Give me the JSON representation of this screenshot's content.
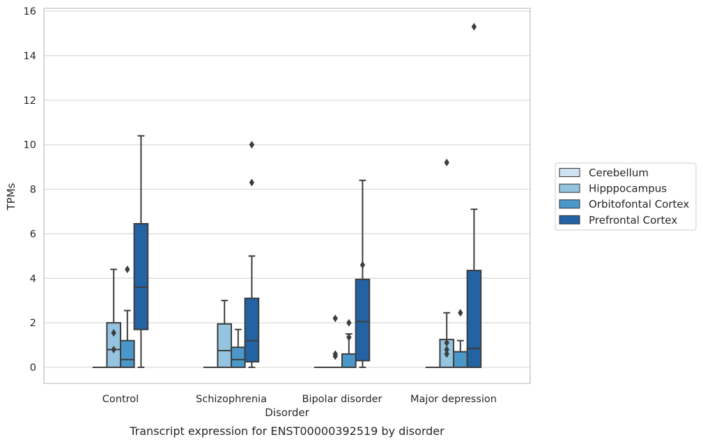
{
  "chart_data": {
    "type": "box",
    "xlabel": "Disorder",
    "ylabel": "TPMs",
    "caption": "Transcript expression for ENST00000392519 by disorder",
    "ylim": [
      -0.7,
      16.1
    ],
    "yticks": [
      0,
      2,
      4,
      6,
      8,
      10,
      12,
      14,
      16
    ],
    "grid": true,
    "legend_position": "right",
    "categories": [
      "Control",
      "Schizophrenia",
      "Bipolar disorder",
      "Major depression"
    ],
    "series": [
      {
        "name": "Cerebellum",
        "color": "#d0e1f2",
        "boxes": [
          {
            "q1": 0,
            "median": 0,
            "q3": 0,
            "whislo": 0,
            "whishi": 0,
            "fliers": []
          },
          {
            "q1": 0,
            "median": 0,
            "q3": 0,
            "whislo": 0,
            "whishi": 0,
            "fliers": []
          },
          {
            "q1": 0,
            "median": 0,
            "q3": 0,
            "whislo": 0,
            "whishi": 0,
            "fliers": []
          },
          {
            "q1": 0,
            "median": 0,
            "q3": 0,
            "whislo": 0,
            "whishi": 0,
            "fliers": []
          }
        ]
      },
      {
        "name": "Hipppocampus",
        "color": "#94c4df",
        "boxes": [
          {
            "q1": 0,
            "median": 0.8,
            "q3": 2.0,
            "whislo": 0,
            "whishi": 4.4,
            "fliers": [
              0.8,
              1.55
            ]
          },
          {
            "q1": 0,
            "median": 0.75,
            "q3": 1.95,
            "whislo": 0,
            "whishi": 3.0,
            "fliers": []
          },
          {
            "q1": 0,
            "median": 0,
            "q3": 0,
            "whislo": 0,
            "whishi": 0,
            "fliers": [
              0.5,
              0.6,
              2.2
            ]
          },
          {
            "q1": 0,
            "median": 0,
            "q3": 1.25,
            "whislo": 0,
            "whishi": 2.45,
            "fliers": [
              0.6,
              0.8,
              1.1,
              9.2
            ]
          }
        ]
      },
      {
        "name": "Orbitofontal Cortex",
        "color": "#4a98c9",
        "boxes": [
          {
            "q1": 0,
            "median": 0.35,
            "q3": 1.2,
            "whislo": 0,
            "whishi": 2.55,
            "fliers": [
              4.4
            ]
          },
          {
            "q1": 0,
            "median": 0.35,
            "q3": 0.9,
            "whislo": 0,
            "whishi": 1.7,
            "fliers": []
          },
          {
            "q1": 0,
            "median": 0,
            "q3": 0.6,
            "whislo": 0,
            "whishi": 1.5,
            "fliers": [
              1.35,
              2.0
            ]
          },
          {
            "q1": 0,
            "median": 0,
            "q3": 0.7,
            "whislo": 0,
            "whishi": 1.2,
            "fliers": [
              2.45
            ]
          }
        ]
      },
      {
        "name": "Prefrontal Cortex",
        "color": "#2362a3",
        "boxes": [
          {
            "q1": 1.7,
            "median": 3.6,
            "q3": 6.45,
            "whislo": 0,
            "whishi": 10.4,
            "fliers": []
          },
          {
            "q1": 0.25,
            "median": 1.2,
            "q3": 3.1,
            "whislo": 0,
            "whishi": 5.0,
            "fliers": [
              8.3,
              10.0
            ]
          },
          {
            "q1": 0.3,
            "median": 2.05,
            "q3": 3.95,
            "whislo": 0,
            "whishi": 8.4,
            "fliers": [
              4.6
            ]
          },
          {
            "q1": 0,
            "median": 0.85,
            "q3": 4.35,
            "whislo": 0,
            "whishi": 7.1,
            "fliers": [
              15.3
            ]
          }
        ]
      }
    ]
  }
}
